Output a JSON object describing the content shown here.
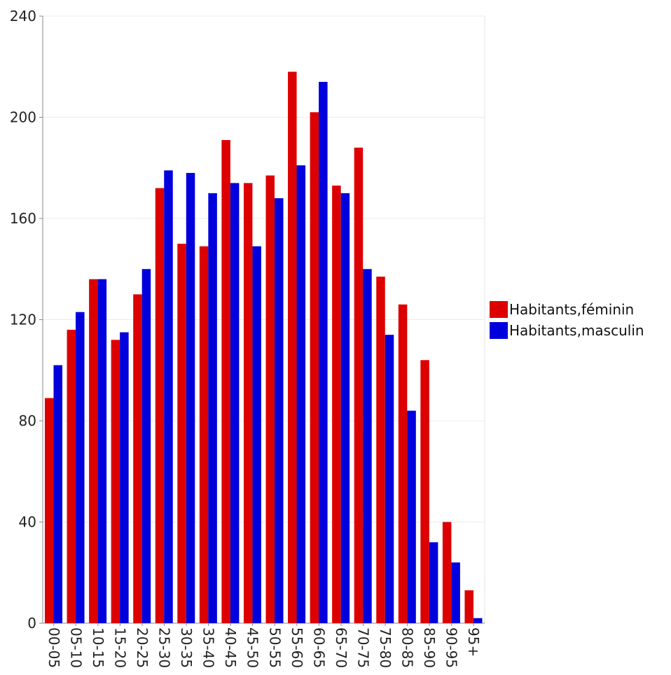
{
  "chart_data": {
    "type": "bar",
    "categories": [
      "00-05",
      "05-10",
      "10-15",
      "15-20",
      "20-25",
      "25-30",
      "30-35",
      "35-40",
      "40-45",
      "45-50",
      "50-55",
      "55-60",
      "60-65",
      "65-70",
      "70-75",
      "75-80",
      "80-85",
      "85-90",
      "90-95",
      "95+"
    ],
    "series": [
      {
        "name": "Habitants,féminin",
        "color": "#dd0000",
        "values": [
          89,
          116,
          136,
          112,
          130,
          172,
          150,
          149,
          191,
          174,
          177,
          218,
          202,
          173,
          188,
          137,
          126,
          104,
          40,
          13
        ]
      },
      {
        "name": "Habitants,masculin",
        "color": "#0000dd",
        "values": [
          102,
          123,
          136,
          115,
          140,
          179,
          178,
          170,
          174,
          149,
          168,
          181,
          214,
          170,
          140,
          114,
          84,
          32,
          24,
          2
        ]
      }
    ],
    "ylim": [
      0,
      240
    ],
    "yticks": [
      0,
      40,
      80,
      120,
      160,
      200,
      240
    ],
    "grid": true,
    "legend": "right"
  }
}
